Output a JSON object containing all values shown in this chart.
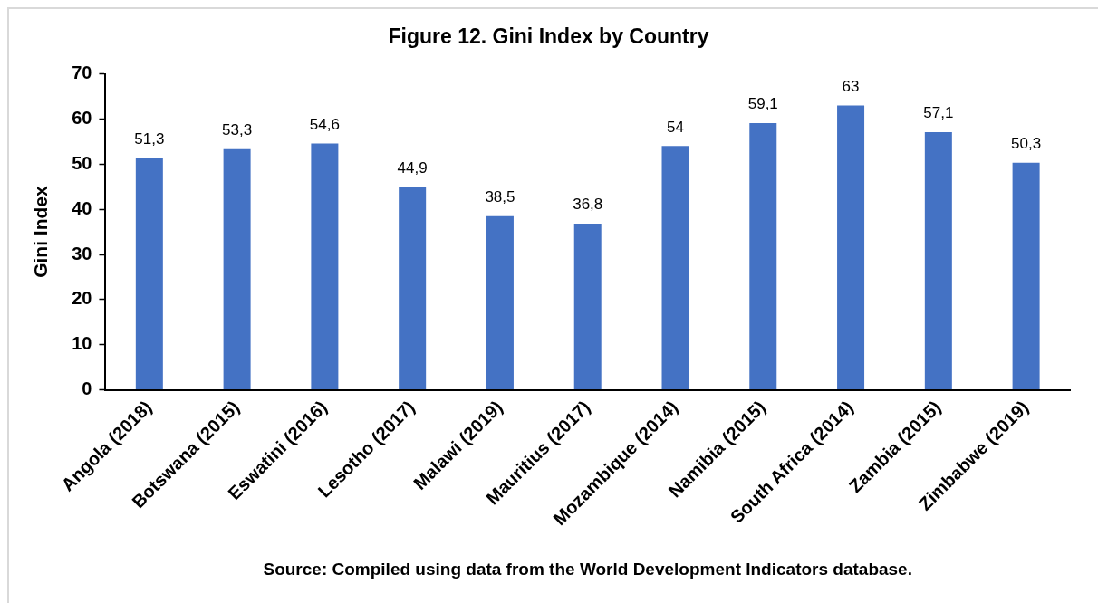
{
  "chart_data": {
    "type": "bar",
    "title": "Figure 12. Gini Index by Country",
    "ylabel": "Gini Index",
    "categories": [
      "Angola (2018)",
      "Botswana (2015)",
      "Eswatini (2016)",
      "Lesotho (2017)",
      "Malawi (2019)",
      "Mauritius (2017)",
      "Mozambique (2014)",
      "Namibia (2015)",
      "South Africa (2014)",
      "Zambia (2015)",
      "Zimbabwe (2019)"
    ],
    "values": [
      51.3,
      53.3,
      54.6,
      44.9,
      38.5,
      36.8,
      54,
      59.1,
      63,
      57.1,
      50.3
    ],
    "value_labels": [
      "51,3",
      "53,3",
      "54,6",
      "44,9",
      "38,5",
      "36,8",
      "54",
      "59,1",
      "63",
      "57,1",
      "50,3"
    ],
    "color": "#4472c4",
    "ylim": [
      0,
      70
    ],
    "yticks": [
      0,
      10,
      20,
      30,
      40,
      50,
      60,
      70
    ],
    "grid": false,
    "annotations": [
      "Source: Compiled using data from the World Development Indicators database."
    ]
  }
}
